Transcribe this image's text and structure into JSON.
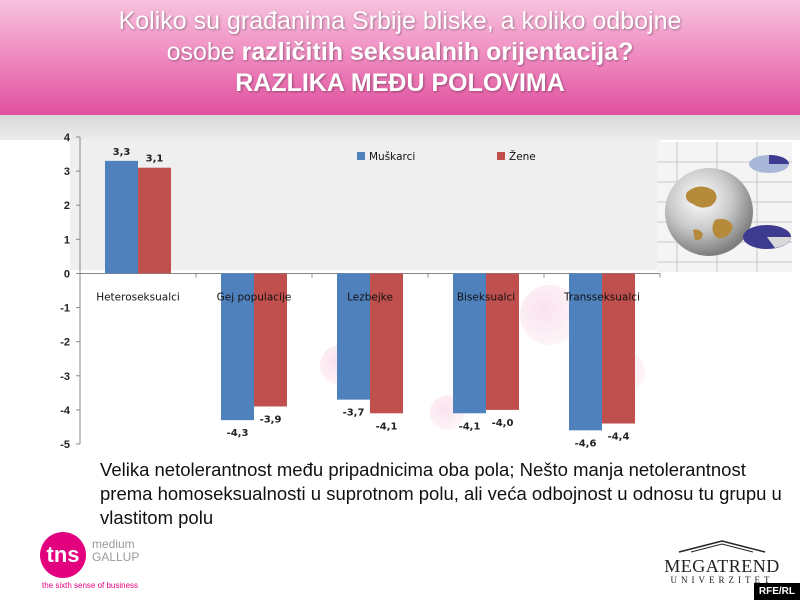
{
  "header": {
    "title_line1": "Koliko su građanima Srbije bliske, a koliko odbojne",
    "title_line2_plain": "osobe ",
    "title_line2_bold": "različitih seksualnih orijentacija?",
    "title_line3": "RAZLIKA MEĐU POLOVIMA"
  },
  "chart_data": {
    "type": "bar",
    "categories": [
      "Heteroseksualci",
      "Gej populacije",
      "Lezbejke",
      "Biseksualci",
      "Transseksualci"
    ],
    "series": [
      {
        "name": "Muškarci",
        "values": [
          3.3,
          -4.3,
          -3.7,
          -4.1,
          -4.6
        ],
        "labels": [
          "3,3",
          "-4,3",
          "-3,7",
          "-4,1",
          "-4,6"
        ],
        "color": "#4f81bd"
      },
      {
        "name": "Žene",
        "values": [
          3.1,
          -3.9,
          -4.1,
          -4.0,
          -4.4
        ],
        "labels": [
          "3,1",
          "-3,9",
          "-4,1",
          "-4,0",
          "-4,4"
        ],
        "color": "#c0504d"
      }
    ],
    "ylim": [
      -5,
      4
    ],
    "yticks": [
      4,
      3,
      2,
      1,
      0,
      -1,
      -2,
      -3,
      -4,
      -5
    ],
    "legend": "top-right",
    "grid": false
  },
  "caption": "Velika netolerantnost među pripadnicima oba pola; Nešto manja netolerantnost prema homoseksualnosti u suprotnom polu, ali veća odbojnost u odnosu tu grupu u vlastitom polu",
  "logos": {
    "tns_mark": "tns",
    "tns_line1": "medium",
    "tns_line2": "GALLUP",
    "tns_tagline": "the sixth sense of business",
    "megatrend_name": "MEGATREND",
    "megatrend_sub": "UNIVERZITET"
  },
  "watermark": "RFE/RL",
  "decor": {
    "image_icon": "globe-with-pie-charts-icon"
  }
}
